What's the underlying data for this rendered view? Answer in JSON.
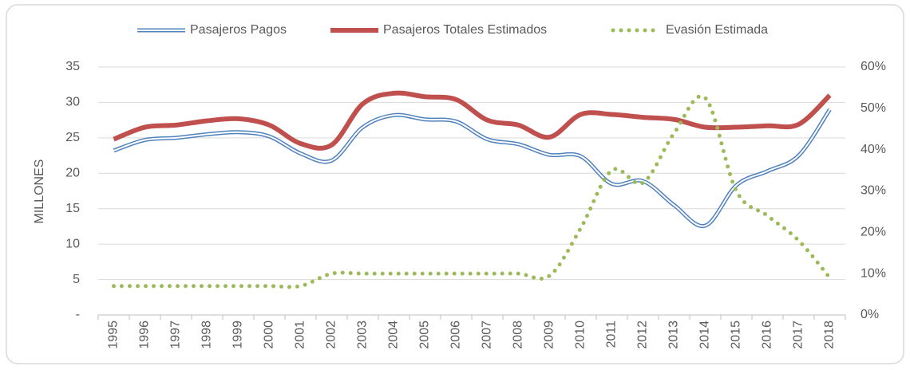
{
  "chart_data": {
    "type": "line",
    "categories": [
      "1995",
      "1996",
      "1997",
      "1998",
      "1999",
      "2000",
      "2001",
      "2002",
      "2003",
      "2004",
      "2005",
      "2006",
      "2007",
      "2008",
      "2009",
      "2010",
      "2011",
      "2012",
      "2013",
      "2014",
      "2015",
      "2016",
      "2017",
      "2018"
    ],
    "series": [
      {
        "name": "Pasajeros Pagos",
        "color": "#4f81bd",
        "style": "double",
        "values": [
          23.2,
          24.7,
          25.0,
          25.5,
          25.8,
          25.2,
          22.8,
          21.8,
          26.5,
          28.2,
          27.6,
          27.3,
          24.8,
          24.1,
          22.6,
          22.4,
          18.5,
          18.9,
          15.5,
          12.6,
          18.3,
          20.3,
          22.5,
          29.0
        ]
      },
      {
        "name": "Pasajeros Totales Estimados",
        "color": "#c0504d",
        "style": "solid",
        "values": [
          24.8,
          26.5,
          26.8,
          27.4,
          27.7,
          26.8,
          24.2,
          24.0,
          29.8,
          31.3,
          30.8,
          30.4,
          27.5,
          26.8,
          25.1,
          28.3,
          28.3,
          27.9,
          27.6,
          26.5,
          26.5,
          26.7,
          26.9,
          31.0
        ]
      },
      {
        "name": "Evasión Estimada",
        "color": "#9bbb59",
        "style": "dotted",
        "axis": "y2",
        "values": [
          7,
          7,
          7,
          7,
          7,
          7,
          7,
          10,
          10,
          10,
          10,
          10,
          10,
          10,
          9.5,
          21,
          35,
          32,
          44,
          52.5,
          30,
          24,
          18,
          9
        ]
      }
    ],
    "y_label": "MILLONES",
    "ylim": [
      0,
      35
    ],
    "yticks": [
      {
        "value": 0,
        "label": "-"
      },
      5,
      10,
      15,
      20,
      25,
      30,
      35
    ],
    "y2lim": [
      0,
      60
    ],
    "y2ticks": [
      {
        "value": 0,
        "label": "0%"
      },
      {
        "value": 10,
        "label": "10%"
      },
      {
        "value": 20,
        "label": "20%"
      },
      {
        "value": 30,
        "label": "30%"
      },
      {
        "value": 40,
        "label": "40%"
      },
      {
        "value": 50,
        "label": "50%"
      },
      {
        "value": 60,
        "label": "60%"
      }
    ],
    "grid": true,
    "legend": "top",
    "smooth": true
  }
}
